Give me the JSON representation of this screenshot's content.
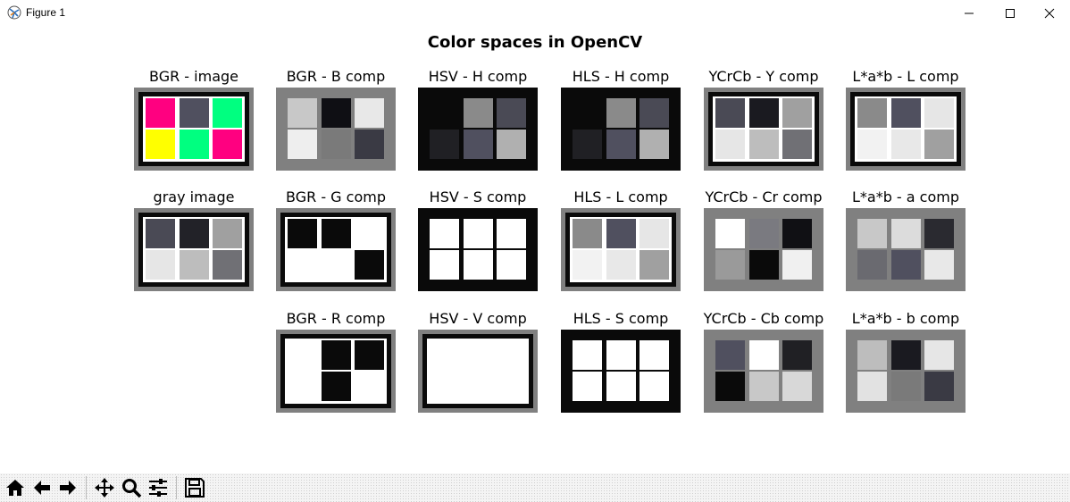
{
  "window": {
    "title": "Figure 1",
    "controls": [
      "minimize",
      "maximize",
      "close"
    ]
  },
  "figure": {
    "title": "Color spaces in OpenCV"
  },
  "colors": {
    "magenta": "#ff0080",
    "dark_slate": "#50505f",
    "green": "#00ff80",
    "yellow": "#ffff00",
    "frame_gray": "#808080",
    "black": "#0a0a0a",
    "white": "#ffffff"
  },
  "panels": [
    {
      "title": "BGR - image",
      "bg": "#808080",
      "border": "#0a0a0a",
      "inner": "#ffffff",
      "cells": [
        "#ff0080",
        "#50505f",
        "#00ff80",
        "#ffff00",
        "#00ff80",
        "#ff0080"
      ]
    },
    {
      "title": "gray image",
      "bg": "#808080",
      "border": "#0a0a0a",
      "inner": "#ffffff",
      "cells": [
        "#4a4a55",
        "#222228",
        "#a0a0a0",
        "#e6e6e6",
        "#bdbdbd",
        "#707075"
      ]
    },
    {
      "title": "BGR - B comp",
      "bg": "#808080",
      "border": "#808080",
      "inner": "#808080",
      "cells": [
        "#c8c8c8",
        "#0f0f14",
        "#e8e8e8",
        "#eeeeee",
        "#7a7a7a",
        "#3a3a44"
      ]
    },
    {
      "title": "BGR - G comp",
      "bg": "#808080",
      "border": "#0a0a0a",
      "inner": "#ffffff",
      "cells": [
        "#0a0a0a",
        "#0a0a0a",
        "#ffffff",
        "#ffffff",
        "#ffffff",
        "#0a0a0a"
      ]
    },
    {
      "title": "BGR - R comp",
      "bg": "#808080",
      "border": "#0a0a0a",
      "inner": "#ffffff",
      "cells": [
        "#ffffff",
        "#0a0a0a",
        "#0a0a0a",
        "#ffffff",
        "#0a0a0a",
        "#ffffff"
      ]
    },
    {
      "title": "HSV - H comp",
      "bg": "#0a0a0a",
      "border": "#0a0a0a",
      "inner": "#0a0a0a",
      "cells": [
        "#0a0a0a",
        "#8a8a8a",
        "#4a4a55",
        "#202024",
        "#50505f",
        "#b0b0b0"
      ]
    },
    {
      "title": "HSV - S comp",
      "bg": "#0a0a0a",
      "border": "#0a0a0a",
      "inner": "#0a0a0a",
      "cells": [
        "#ffffff",
        "#ffffff",
        "#ffffff",
        "#ffffff",
        "#ffffff",
        "#ffffff"
      ]
    },
    {
      "title": "HSV - V comp",
      "bg": "#808080",
      "border": "#0a0a0a",
      "inner": "#ffffff",
      "cells": [
        "#ffffff",
        "#ffffff",
        "#ffffff",
        "#ffffff",
        "#ffffff",
        "#ffffff"
      ]
    },
    {
      "title": "HLS - H comp",
      "bg": "#0a0a0a",
      "border": "#0a0a0a",
      "inner": "#0a0a0a",
      "cells": [
        "#0a0a0a",
        "#8a8a8a",
        "#4a4a55",
        "#202024",
        "#50505f",
        "#b0b0b0"
      ]
    },
    {
      "title": "HLS - L comp",
      "bg": "#808080",
      "border": "#0a0a0a",
      "inner": "#ffffff",
      "cells": [
        "#8a8a8a",
        "#50505f",
        "#e6e6e6",
        "#f2f2f2",
        "#e8e8e8",
        "#a0a0a0"
      ]
    },
    {
      "title": "HLS - S comp",
      "bg": "#0a0a0a",
      "border": "#0a0a0a",
      "inner": "#0a0a0a",
      "cells": [
        "#ffffff",
        "#ffffff",
        "#ffffff",
        "#ffffff",
        "#ffffff",
        "#ffffff"
      ]
    },
    {
      "title": "YCrCb - Y comp",
      "bg": "#808080",
      "border": "#0a0a0a",
      "inner": "#ffffff",
      "cells": [
        "#4a4a55",
        "#1a1a20",
        "#a0a0a0",
        "#e6e6e6",
        "#bdbdbd",
        "#707075"
      ]
    },
    {
      "title": "YCrCb - Cr comp",
      "bg": "#808080",
      "border": "#808080",
      "inner": "#808080",
      "cells": [
        "#ffffff",
        "#7a7a80",
        "#101014",
        "#9a9a9a",
        "#0a0a0a",
        "#f0f0f0"
      ]
    },
    {
      "title": "YCrCb - Cb comp",
      "bg": "#808080",
      "border": "#808080",
      "inner": "#808080",
      "cells": [
        "#50505f",
        "#ffffff",
        "#202024",
        "#0a0a0a",
        "#c8c8c8",
        "#d8d8d8"
      ]
    },
    {
      "title": "L*a*b - L comp",
      "bg": "#808080",
      "border": "#0a0a0a",
      "inner": "#ffffff",
      "cells": [
        "#8a8a8a",
        "#50505f",
        "#e6e6e6",
        "#f2f2f2",
        "#e8e8e8",
        "#a0a0a0"
      ]
    },
    {
      "title": "L*a*b - a comp",
      "bg": "#808080",
      "border": "#808080",
      "inner": "#808080",
      "cells": [
        "#c8c8c8",
        "#dcdcdc",
        "#2a2a30",
        "#6a6a70",
        "#50505f",
        "#e8e8e8"
      ]
    },
    {
      "title": "L*a*b - b comp",
      "bg": "#808080",
      "border": "#808080",
      "inner": "#808080",
      "cells": [
        "#bdbdbd",
        "#1a1a20",
        "#e6e6e6",
        "#e2e2e2",
        "#7a7a7a",
        "#3a3a44"
      ]
    }
  ],
  "toolbar": {
    "buttons": [
      "home-icon",
      "back-arrow-icon",
      "forward-arrow-icon",
      "pan-icon",
      "zoom-icon",
      "configure-subplots-icon",
      "save-icon"
    ]
  }
}
